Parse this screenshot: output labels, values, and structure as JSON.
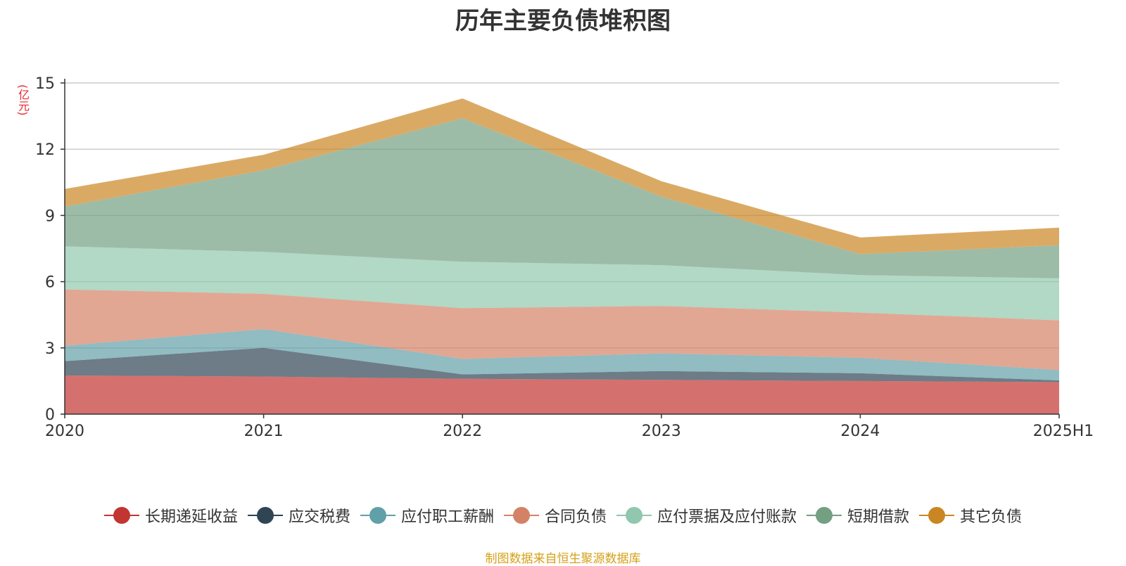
{
  "chart_data": {
    "type": "area",
    "stacked": true,
    "title": "历年主要负债堆积图",
    "unit": "(亿元)",
    "categories": [
      "2020",
      "2021",
      "2022",
      "2023",
      "2024",
      "2025H1"
    ],
    "ylim": [
      0,
      15
    ],
    "yticks": [
      "0",
      "3",
      "6",
      "9",
      "12",
      "15"
    ],
    "grid": true,
    "legend_position": "bottom",
    "series": [
      {
        "name": "长期递延收益",
        "color": "#c23531",
        "values": [
          1.75,
          1.7,
          1.6,
          1.55,
          1.5,
          1.45
        ]
      },
      {
        "name": "应交税费",
        "color": "#2f4554",
        "values": [
          0.65,
          1.3,
          0.2,
          0.4,
          0.35,
          0.08
        ]
      },
      {
        "name": "应付职工薪酬",
        "color": "#61a0a8",
        "values": [
          0.7,
          0.85,
          0.7,
          0.8,
          0.7,
          0.47
        ]
      },
      {
        "name": "合同负债",
        "color": "#d48265",
        "values": [
          2.55,
          1.6,
          2.3,
          2.15,
          2.05,
          2.25
        ]
      },
      {
        "name": "应付票据及应付账款",
        "color": "#91c7ae",
        "values": [
          1.95,
          1.9,
          2.1,
          1.85,
          1.7,
          1.9
        ]
      },
      {
        "name": "短期借款",
        "color": "#749f83",
        "values": [
          1.8,
          3.7,
          6.5,
          3.1,
          0.95,
          1.5
        ]
      },
      {
        "name": "其它负债",
        "color": "#ca8622",
        "values": [
          0.8,
          0.7,
          0.9,
          0.7,
          0.75,
          0.8
        ]
      }
    ]
  },
  "source_note": "制图数据来自恒生聚源数据库"
}
